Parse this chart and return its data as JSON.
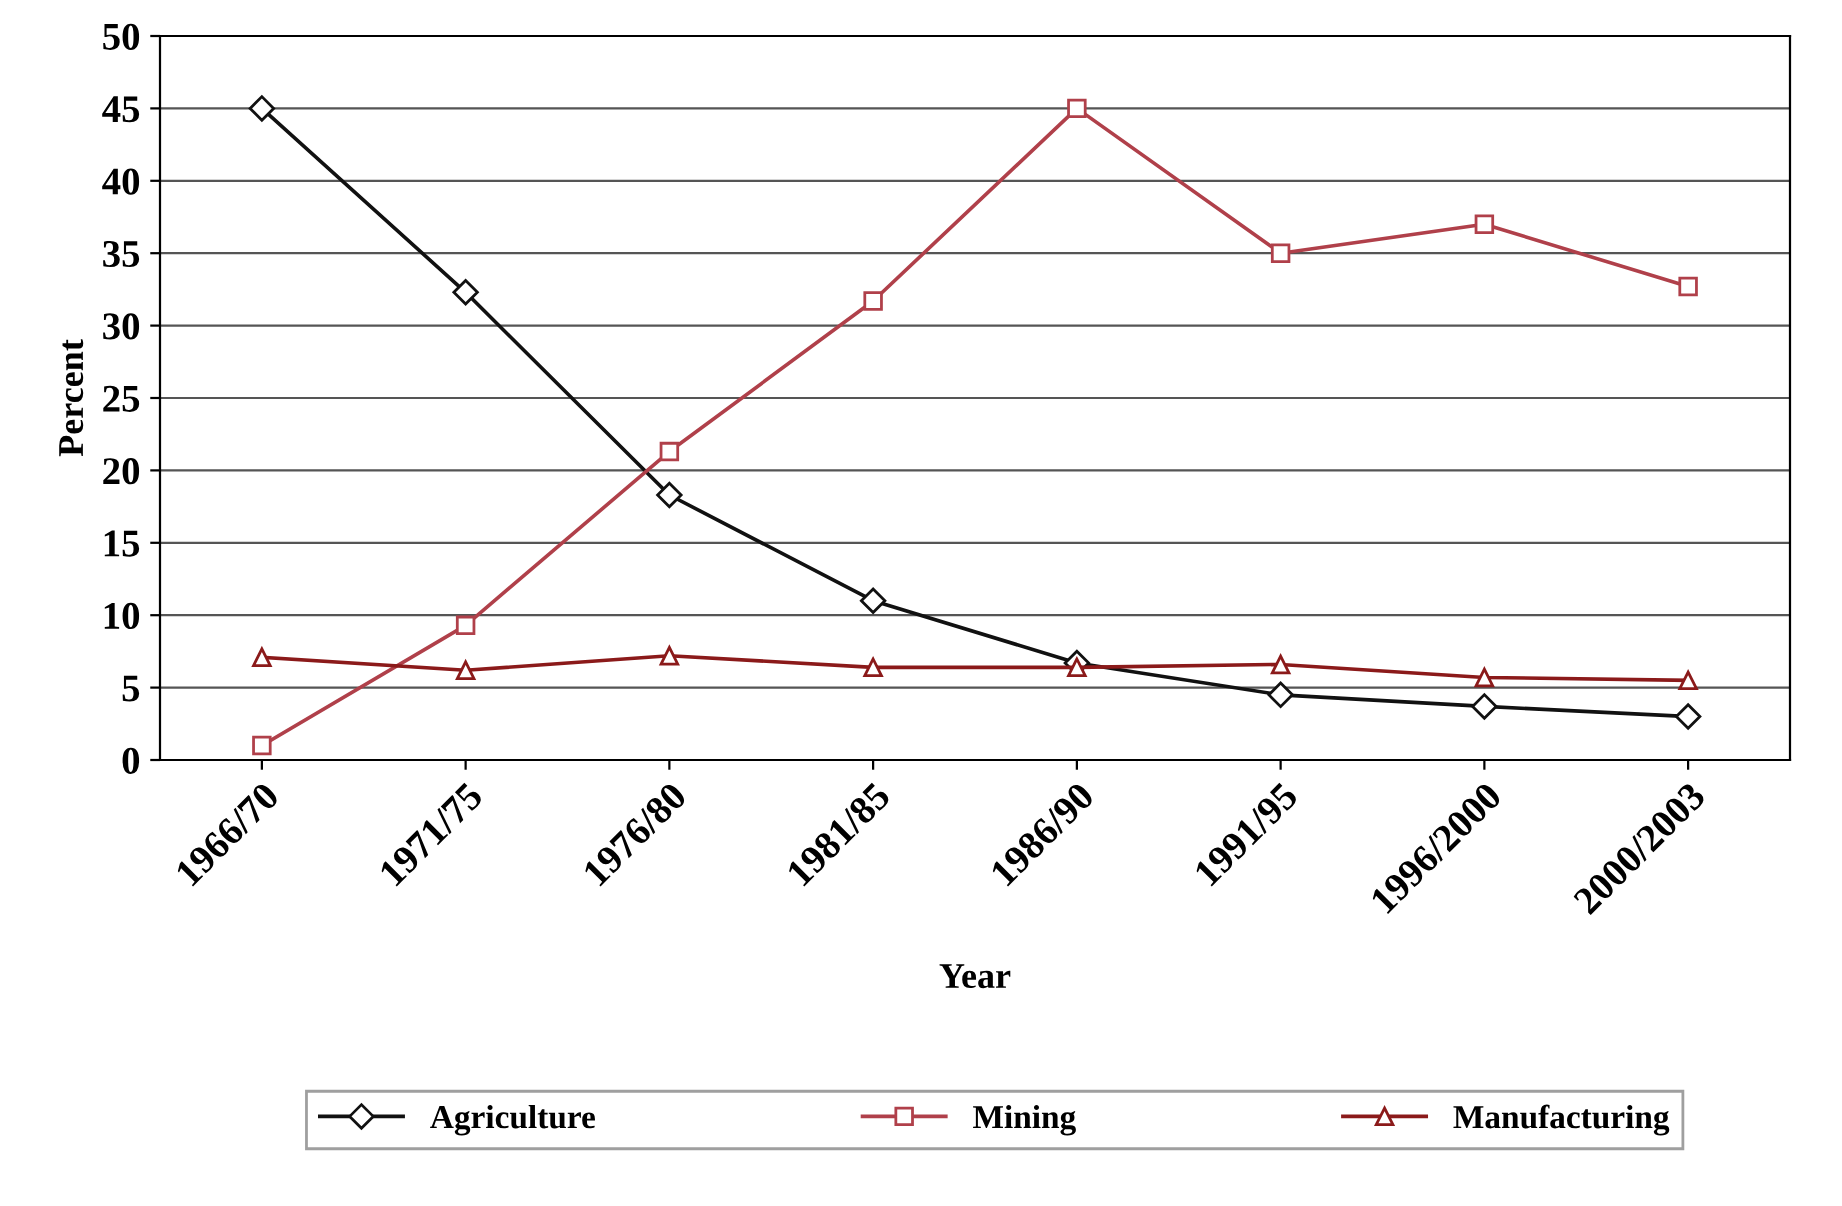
{
  "chart_data": {
    "type": "line",
    "xlabel": "Year",
    "ylabel": "Percent",
    "categories": [
      "1966/70",
      "1971/75",
      "1976/80",
      "1981/85",
      "1986/90",
      "1991/95",
      "1996/2000",
      "2000/2003"
    ],
    "series": [
      {
        "name": "Agriculture",
        "color": "#111111",
        "marker": "diamond",
        "values": [
          45,
          32.3,
          18.3,
          11,
          6.7,
          4.5,
          3.7,
          3
        ]
      },
      {
        "name": "Mining",
        "color": "#b0404a",
        "marker": "square",
        "values": [
          1,
          9.3,
          21.3,
          31.7,
          45,
          35,
          37,
          32.7
        ]
      },
      {
        "name": "Manufacturing",
        "color": "#8b1a1a",
        "marker": "triangle",
        "values": [
          7.1,
          6.2,
          7.2,
          6.4,
          6.4,
          6.6,
          5.7,
          5.5
        ]
      }
    ],
    "ylim": [
      0,
      50
    ],
    "yticks": [
      0,
      5,
      10,
      15,
      20,
      25,
      30,
      35,
      40,
      45,
      50
    ],
    "grid": "y",
    "legend": "bottom",
    "line_style": "solid"
  }
}
